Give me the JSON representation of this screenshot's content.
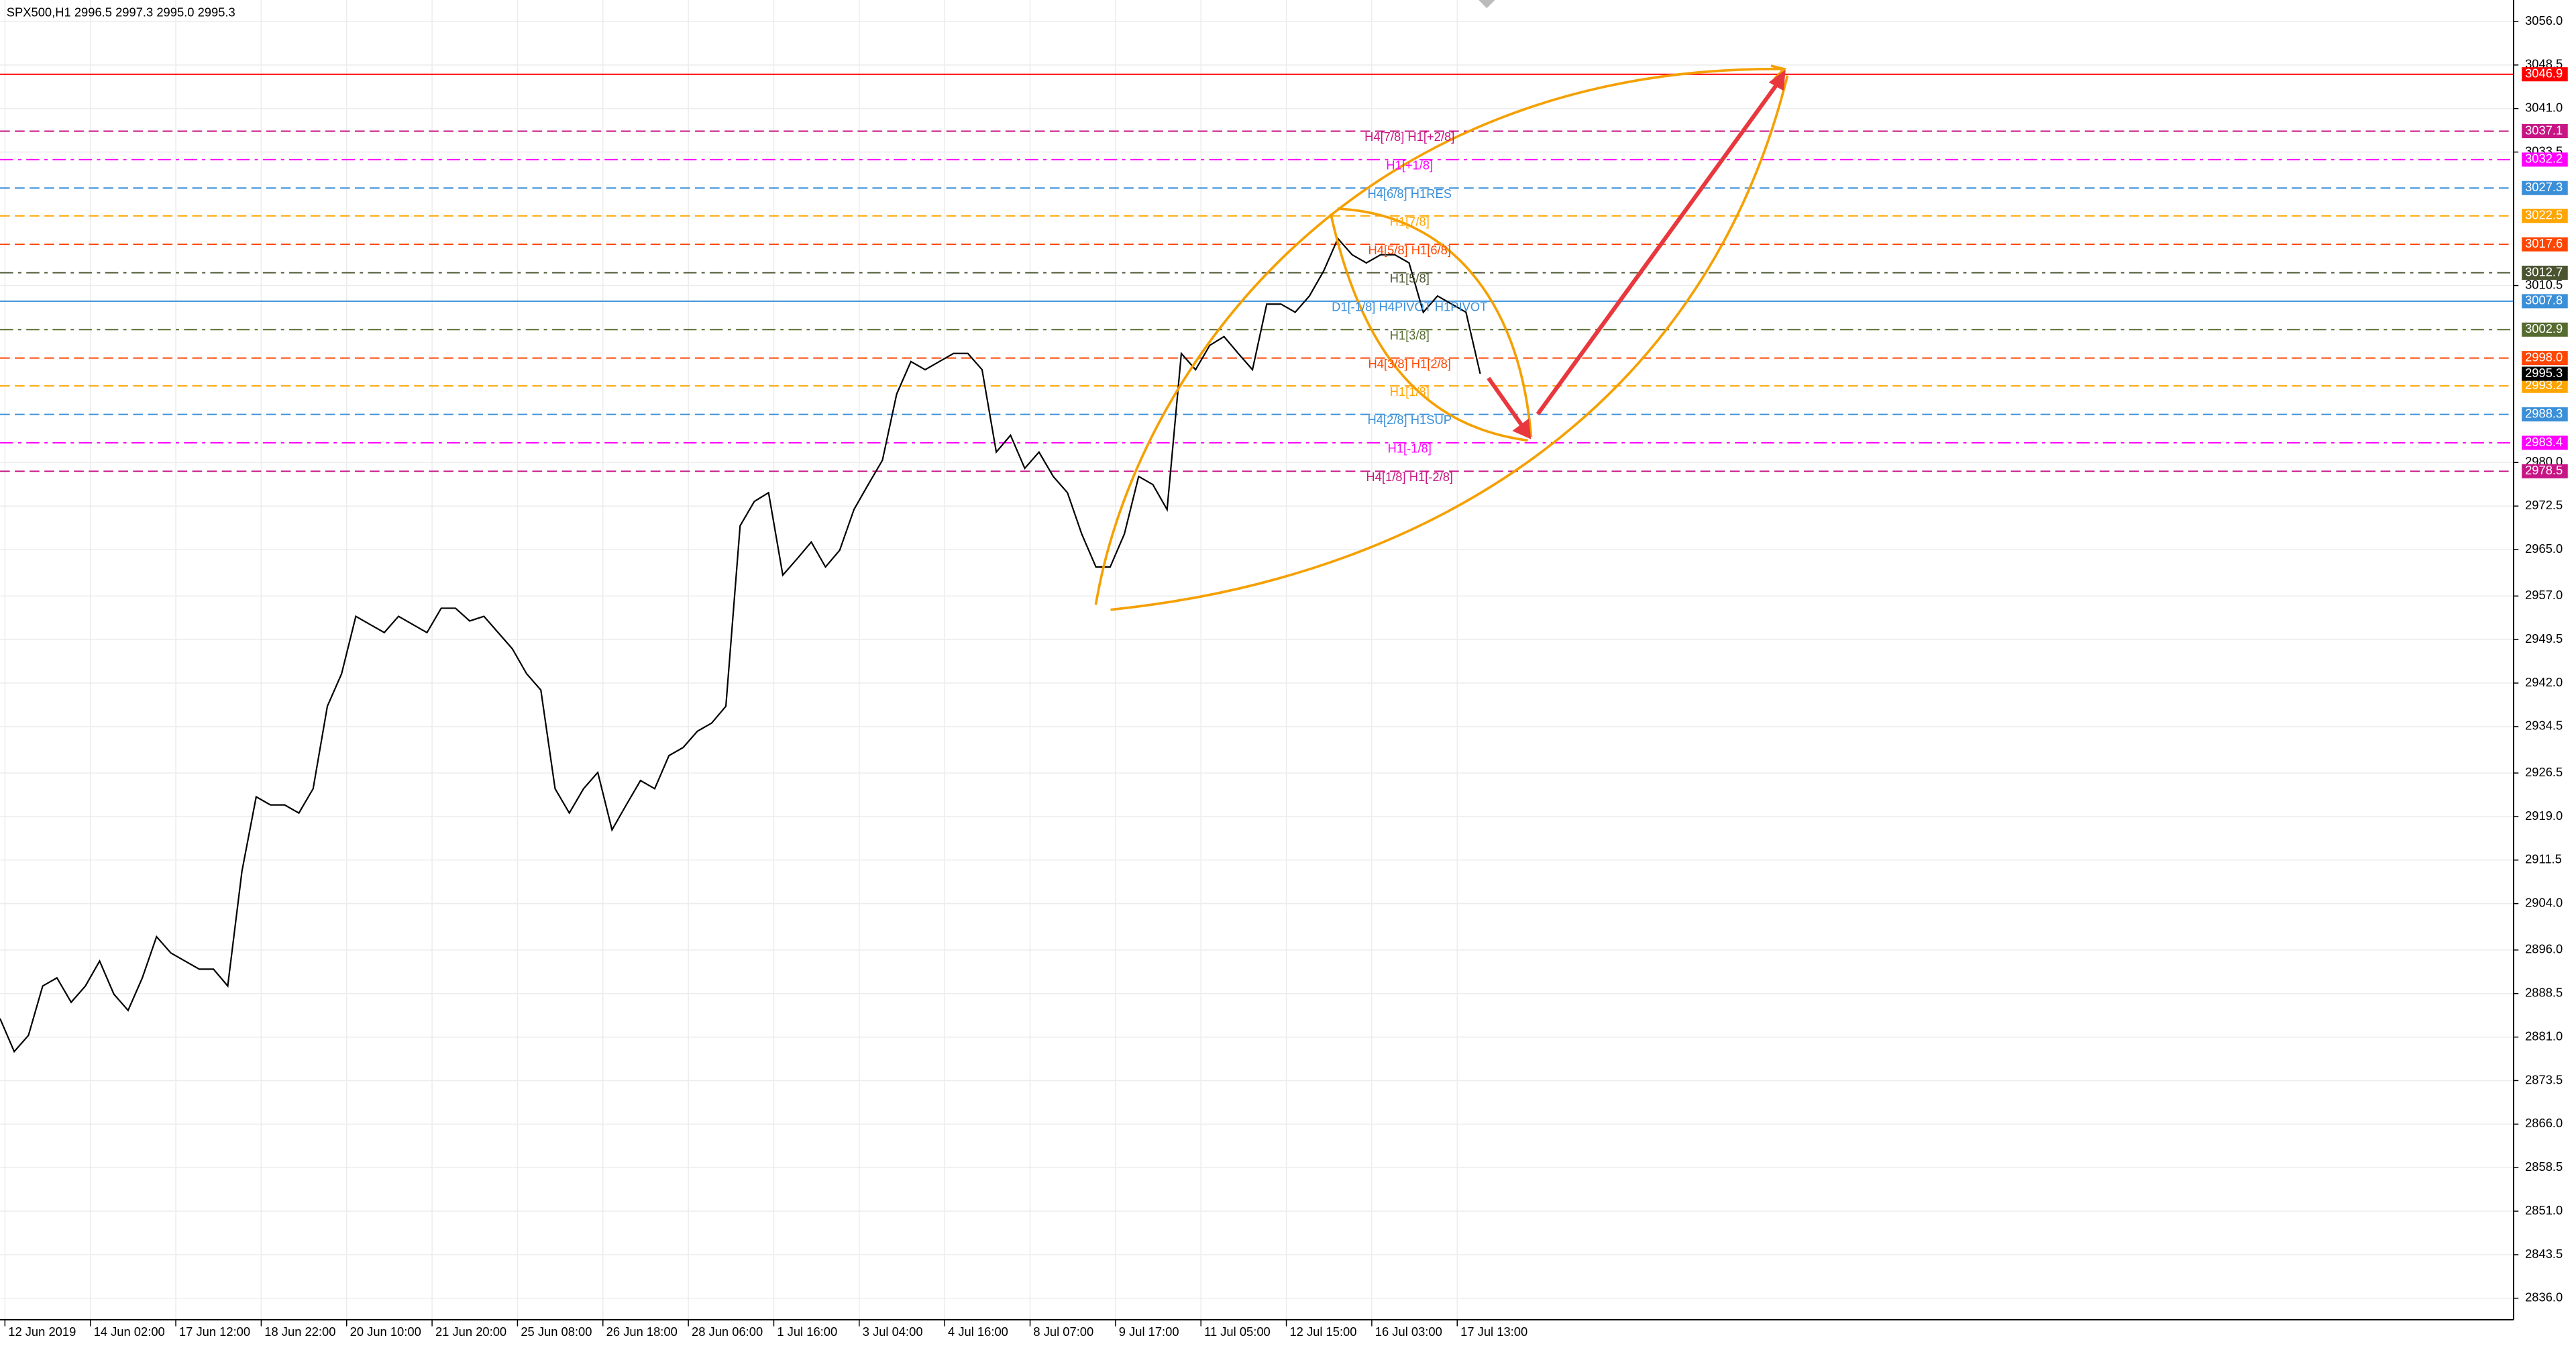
{
  "chart_data": {
    "type": "line",
    "title": "SPX500,H1  2996.5 2997.3 2995.0 2995.3",
    "ylim": [
      2832.3,
      3059.7
    ],
    "yticks": [
      {
        "value": 3056,
        "label": "3056.0"
      },
      3048.5,
      {
        "value": 3041,
        "label": "3041.0"
      },
      3033.5,
      3010.5,
      {
        "value": 2980,
        "label": "2980.0"
      },
      2972.5,
      {
        "value": 2965,
        "label": "2965.0"
      },
      {
        "value": 2957,
        "label": "2957.0"
      },
      2949.5,
      {
        "value": 2942,
        "label": "2942.0"
      },
      2934.5,
      2926.5,
      {
        "value": 2919,
        "label": "2919.0"
      },
      2911.5,
      {
        "value": 2904,
        "label": "2904.0"
      },
      {
        "value": 2896,
        "label": "2896.0"
      },
      2888.5,
      {
        "value": 2881,
        "label": "2881.0"
      },
      2873.5,
      {
        "value": 2866,
        "label": "2866.0"
      },
      2858.5,
      {
        "value": 2851,
        "label": "2851.0"
      },
      2843.5,
      {
        "value": 2836,
        "label": "2836.0"
      }
    ],
    "xtick_labels": [
      "12 Jun 2019",
      "14 Jun 02:00",
      "17 Jun 12:00",
      "18 Jun 22:00",
      "20 Jun 10:00",
      "21 Jun 20:00",
      "25 Jun 08:00",
      "26 Jun 18:00",
      "28 Jun 06:00",
      "1 Jul 16:00",
      "3 Jul 04:00",
      "4 Jul 16:00",
      "8 Jul 07:00",
      "9 Jul 17:00",
      "11 Jul 05:00",
      "12 Jul 15:00",
      "16 Jul 03:00",
      "17 Jul 13:00"
    ],
    "grid": true,
    "series": [
      {
        "color": "#000000",
        "values": [
          2884.2,
          2878.5,
          2881.3,
          2889.8,
          2891.2,
          2887.0,
          2889.8,
          2894.1,
          2888.4,
          2885.6,
          2891.2,
          2898.3,
          2895.5,
          2894.1,
          2892.7,
          2892.7,
          2889.8,
          2909.6,
          2922.4,
          2921.0,
          2921.0,
          2919.6,
          2923.8,
          2938.0,
          2943.6,
          2953.5,
          2952.1,
          2950.7,
          2953.5,
          2952.1,
          2950.7,
          2954.9,
          2954.9,
          2952.7,
          2953.5,
          2950.7,
          2947.9,
          2943.6,
          2940.8,
          2923.8,
          2919.6,
          2923.8,
          2926.6,
          2916.7,
          2921.0,
          2925.2,
          2923.8,
          2929.5,
          2930.9,
          2933.7,
          2935.1,
          2938.0,
          2969.1,
          2973.3,
          2974.8,
          2960.6,
          2963.4,
          2966.3,
          2962.0,
          2964.9,
          2971.9,
          2976.2,
          2980.4,
          2991.8,
          2997.4,
          2996.0,
          2997.4,
          2998.8,
          2998.8,
          2996.0,
          2981.8,
          2984.7,
          2979.0,
          2981.8,
          2977.6,
          2974.8,
          2967.7,
          2962.0,
          2962.0,
          2967.7,
          2977.6,
          2976.2,
          2971.9,
          2998.8,
          2996.0,
          3000.2,
          3001.7,
          2998.8,
          2996.0,
          3007.3,
          3007.3,
          3005.9,
          3008.7,
          3013.0,
          3018.6,
          3015.8,
          3014.4,
          3015.8,
          3015.8,
          3014.4,
          3005.9,
          3008.7,
          3007.3,
          3005.9,
          2995.3
        ]
      }
    ],
    "last_price": 2995.3,
    "levels": {
      "values": [
        3046.9,
        3037.1,
        3032.2,
        3027.3,
        3022.5,
        3017.6,
        3012.7,
        3007.8,
        3002.9,
        2998,
        2993.2,
        2988.3,
        2983.4,
        2978.5
      ],
      "value_labels": [
        "3046.9",
        "3037.1",
        "3032.2",
        "3027.3",
        "3022.5",
        "3017.6",
        "3012.7",
        "3007.8",
        "3002.9",
        "2998.0",
        "2993.2",
        "2988.3",
        "2983.4",
        "2978.5"
      ],
      "names": [
        null,
        "H4[7/8] H1[+2/8]",
        "H1[+1/8]",
        "H4[6/8] H1RES",
        "H1[7/8]",
        "H4[5/8] H1[6/8]",
        "H1[5/8]",
        "D1[-1/8] H4PIVOT H1PIVOT",
        "H1[3/8]",
        "H4[3/8] H1[2/8]",
        "H1[1/8]",
        "H4[2/8] H1SUP",
        "H1[-1/8]",
        "H4[1/8] H1[-2/8]"
      ],
      "colors": [
        "#ff0000",
        "#c71585",
        "#ff00ff",
        "#3a8fd8",
        "#ffa500",
        "#ff4500",
        "#4a5530",
        "#3a8fd8",
        "#556b2f",
        "#ff4500",
        "#ffa500",
        "#3a8fd8",
        "#ff00ff",
        "#c71585"
      ],
      "styles": [
        "solid",
        "dash",
        "dashdot",
        "dash",
        "dash",
        "dash",
        "dashdot",
        "solid",
        "dashdot",
        "dash",
        "dash",
        "dash",
        "dashdot",
        "dash"
      ]
    }
  }
}
